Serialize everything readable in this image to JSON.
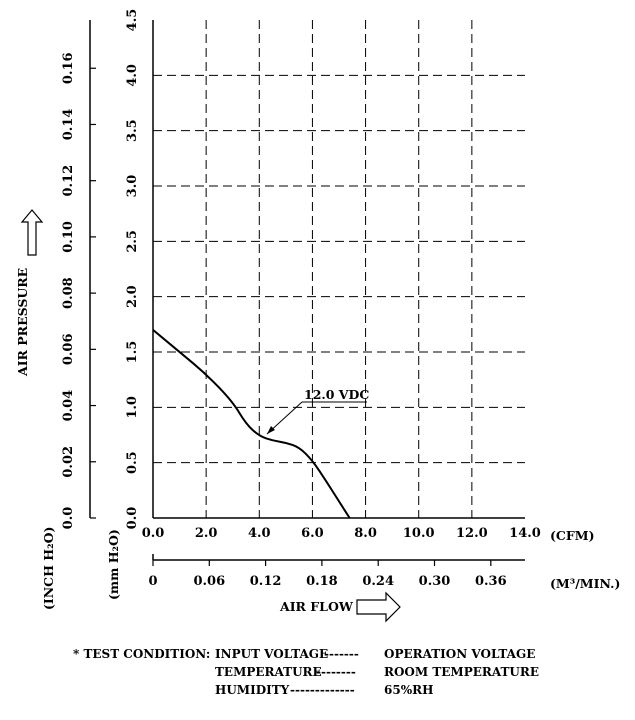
{
  "chart_data": {
    "type": "line",
    "x_primary": {
      "label": "(CFM)",
      "min": 0,
      "max": 14,
      "ticks": [
        "0.0",
        "2.0",
        "4.0",
        "6.0",
        "8.0",
        "10.0",
        "12.0",
        "14.0"
      ]
    },
    "x_secondary": {
      "label": "(M³/MIN.)",
      "ticks": [
        "0",
        "0.06",
        "0.12",
        "0.18",
        "0.24",
        "0.30",
        "0.36"
      ]
    },
    "x_title": "AIR FLOW",
    "y_primary": {
      "label": "(mm H₂O)",
      "min": 0,
      "max": 4.5,
      "ticks": [
        "0.0",
        "0.5",
        "1.0",
        "1.5",
        "2.0",
        "2.5",
        "3.0",
        "3.5",
        "4.0",
        "4.5"
      ]
    },
    "y_secondary": {
      "label": "(INCH H₂O)",
      "ticks": [
        "0.0",
        "0.02",
        "0.04",
        "0.06",
        "0.08",
        "0.10",
        "0.12",
        "0.14",
        "0.16"
      ]
    },
    "y_title": "AIR PRESSURE",
    "grid": true,
    "series": [
      {
        "name": "12.0 VDC",
        "points": [
          [
            0,
            1.7
          ],
          [
            1,
            1.5
          ],
          [
            2,
            1.3
          ],
          [
            3,
            1.05
          ],
          [
            3.5,
            0.85
          ],
          [
            4,
            0.74
          ],
          [
            4.5,
            0.7
          ],
          [
            5,
            0.68
          ],
          [
            5.5,
            0.64
          ],
          [
            6,
            0.52
          ],
          [
            6.5,
            0.34
          ],
          [
            7,
            0.15
          ],
          [
            7.4,
            0.0
          ]
        ]
      }
    ]
  },
  "test_condition": {
    "heading": "* TEST CONDITION:",
    "rows": [
      {
        "item": "INPUT VOLTAGE",
        "dashes": "-------",
        "value": "OPERATION VOLTAGE"
      },
      {
        "item": "TEMPERATURE",
        "dashes": "--------",
        "value": "ROOM TEMPERATURE"
      },
      {
        "item": "HUMIDITY",
        "dashes": "-------------",
        "value": "65%RH"
      }
    ]
  }
}
